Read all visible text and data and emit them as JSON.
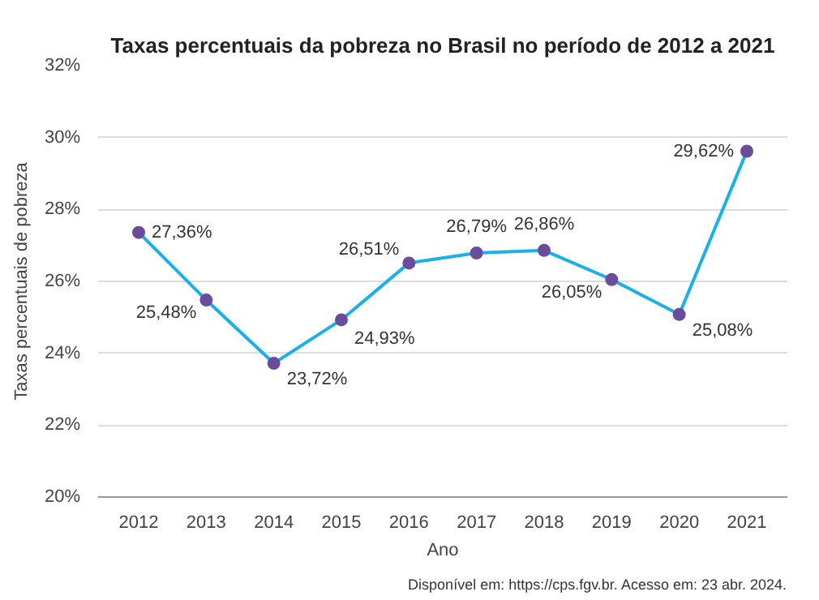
{
  "chart_data": {
    "type": "line",
    "title": "Taxas percentuais da pobreza no Brasil no período de 2012 a 2021",
    "xlabel": "Ano",
    "ylabel": "Taxas percentuais de pobreza",
    "categories": [
      "2012",
      "2013",
      "2014",
      "2015",
      "2016",
      "2017",
      "2018",
      "2019",
      "2020",
      "2021"
    ],
    "series": [
      {
        "color": "#1ab0e8",
        "values": [
          27.36,
          25.48,
          23.72,
          24.93,
          26.51,
          26.79,
          26.86,
          26.05,
          25.08,
          29.62
        ],
        "value_labels": [
          "27,36%",
          "25,48%",
          "23,72%",
          "24,93%",
          "26,51%",
          "26,79%",
          "26,86%",
          "26,05%",
          "25,08%",
          "29,62%"
        ]
      }
    ],
    "ylim": [
      20,
      32
    ],
    "yticks": [
      {
        "value": 20,
        "label": "20%"
      },
      {
        "value": 22,
        "label": "22%"
      },
      {
        "value": 24,
        "label": "24%"
      },
      {
        "value": 26,
        "label": "26%"
      },
      {
        "value": 28,
        "label": "28%"
      },
      {
        "value": 30,
        "label": "30%"
      },
      {
        "value": 32,
        "label": "32%"
      }
    ],
    "grid": "y",
    "marker": "circle",
    "line_style": "solid",
    "annotations": [
      "Disponível em: https://cps.fgv.br. Acesso em: 23 abr. 2024."
    ]
  }
}
